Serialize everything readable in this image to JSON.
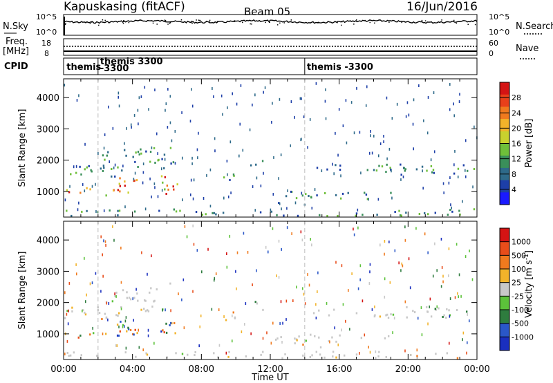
{
  "header": {
    "station": "Kapuskasing (fitACF)",
    "beam": "Beam 05",
    "date": "16/Jun/2016"
  },
  "top_panels": {
    "nsky_label": "N.Sky",
    "nsky_ticks": [
      "10^5",
      "10^0"
    ],
    "nsearch_label": "N.Search",
    "nsearch_ticks": [
      "10^5",
      "10^0"
    ],
    "freq_label_1": "Freq.",
    "freq_label_2": "[MHz]",
    "freq_ticks": [
      "18",
      "8"
    ],
    "nave_label": "Nave",
    "nave_ticks": [
      "60",
      "0"
    ],
    "cpid_label": "CPID",
    "cpid_entries": [
      {
        "text": "themis",
        "t": 0.05
      },
      {
        "text": "themis 3300",
        "t": 2.0
      },
      {
        "text": "-3300",
        "t": 2.0
      },
      {
        "text": "themis -3300",
        "t": 14.0
      }
    ]
  },
  "chart_data": [
    {
      "type": "heatmap",
      "title": "",
      "xlabel": "Time UT",
      "ylabel": "Slant Range [km]",
      "xlim": [
        0,
        24
      ],
      "ylim": [
        180,
        4600
      ],
      "x_ticks": [
        "00:00",
        "04:00",
        "08:00",
        "12:00",
        "16:00",
        "20:00",
        "00:00"
      ],
      "y_ticks": [
        1000,
        2000,
        3000,
        4000
      ],
      "colorbar": {
        "label": "Power [dB]",
        "ticks": [
          4,
          8,
          12,
          16,
          20,
          24,
          28
        ],
        "range": [
          0,
          32
        ],
        "colors": [
          "#1a1aff",
          "#1d3fa8",
          "#2e6a8a",
          "#3a8f5a",
          "#6fbf3a",
          "#c9d12e",
          "#f2b32a",
          "#f07a1e",
          "#e8401a",
          "#d41414"
        ]
      },
      "dashed_times": [
        2.0,
        14.0
      ]
    },
    {
      "type": "heatmap",
      "title": "",
      "xlabel": "Time UT",
      "ylabel": "Slant Range [km]",
      "xlim": [
        0,
        24
      ],
      "ylim": [
        180,
        4600
      ],
      "x_ticks": [
        "00:00",
        "04:00",
        "08:00",
        "12:00",
        "16:00",
        "20:00",
        "00:00"
      ],
      "y_ticks": [
        1000,
        2000,
        3000,
        4000
      ],
      "colorbar": {
        "label": "Velocity [m s^-1]",
        "ticks": [
          "1000",
          "500",
          "100",
          "25",
          "-25",
          "-100",
          "-500",
          "-1000"
        ],
        "colors": [
          "#1a2fbf",
          "#2a57c8",
          "#2e7c3e",
          "#5cc23a",
          "#c8c8c8",
          "#f2b32a",
          "#f07a1e",
          "#e84d1a",
          "#d41414"
        ]
      },
      "dashed_times": [
        2.0,
        14.0
      ]
    }
  ],
  "x_axis_title": "Time UT"
}
